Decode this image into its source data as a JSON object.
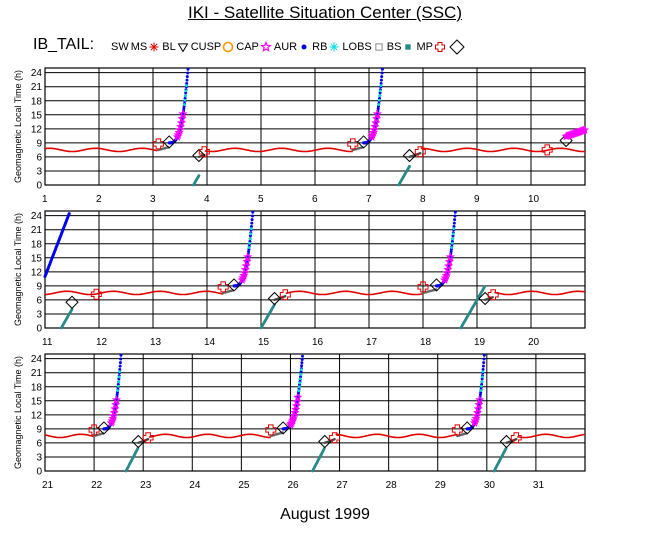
{
  "title": "IKI - Satellite Situation Center (SSC)",
  "spacecraft_label": "IB_TAIL:",
  "legend": [
    {
      "label": "SW",
      "symbol": "none",
      "color": "#ffffff"
    },
    {
      "label": "MS",
      "symbol": "asterisk",
      "color": "#e00000"
    },
    {
      "label": "BL",
      "symbol": "triangle-down",
      "color": "#000000"
    },
    {
      "label": "CUSP",
      "symbol": "circle",
      "color": "#ff9900"
    },
    {
      "label": "CAP",
      "symbol": "star",
      "color": "#ff00ff"
    },
    {
      "label": "AUR",
      "symbol": "dot",
      "color": "#0000ee"
    },
    {
      "label": "RB",
      "symbol": "asterisk",
      "color": "#00dddd"
    },
    {
      "label": "LOBS",
      "symbol": "square",
      "color": "#888888"
    },
    {
      "label": "BS",
      "symbol": "square-filled",
      "color": "#2a8a8a"
    },
    {
      "label": "MP",
      "symbol": "plus",
      "color": "#e00000"
    },
    {
      "label": "",
      "symbol": "diamond",
      "color": "#000000"
    }
  ],
  "xlabel": "August    1999",
  "chart_data": {
    "type": "line",
    "ylabel": "Geomagnetic Local Time (h)",
    "y_ticks": [
      "0",
      "3",
      "6",
      "9",
      "12",
      "15",
      "18",
      "21",
      "24"
    ],
    "ylim": [
      0,
      25
    ],
    "grid": true,
    "panels": [
      {
        "xlim": [
          1,
          11
        ],
        "x_ticks": [
          "1",
          "2",
          "3",
          "4",
          "5",
          "6",
          "7",
          "8",
          "9",
          "10"
        ],
        "passes": [
          {
            "t_bs": 3.1,
            "t_mp": 3.3,
            "t_peri": 3.65,
            "t_out": 3.75,
            "t_mp2": 3.85,
            "t_bs2": 3.95
          },
          {
            "t_bs": 6.7,
            "t_mp": 6.9,
            "t_peri": 7.25,
            "t_out": 7.55,
            "t_mp2": 7.75,
            "t_bs2": 7.95
          }
        ],
        "edge_rise_end": 10.55
      },
      {
        "xlim": [
          11,
          21
        ],
        "x_ticks": [
          "11",
          "12",
          "13",
          "14",
          "15",
          "16",
          "17",
          "18",
          "19",
          "20"
        ],
        "passes": [
          {
            "t_bs": 14.3,
            "t_mp": 14.5,
            "t_peri": 14.85,
            "t_out": 15.0,
            "t_mp2": 15.25,
            "t_bs2": 15.45
          },
          {
            "t_bs": 18.0,
            "t_mp": 18.25,
            "t_peri": 18.6,
            "t_out": 18.7,
            "t_mp2": 19.15,
            "t_bs2": 19.3
          }
        ],
        "edge_fall_start": 11.0
      },
      {
        "xlim": [
          21,
          32
        ],
        "x_ticks": [
          "21",
          "22",
          "23",
          "24",
          "25",
          "26",
          "27",
          "28",
          "29",
          "30",
          "31"
        ],
        "passes": [
          {
            "t_bs": 22.0,
            "t_mp": 22.2,
            "t_peri": 22.55,
            "t_out": 22.65,
            "t_mp2": 22.9,
            "t_bs2": 23.1
          },
          {
            "t_bs": 25.6,
            "t_mp": 25.85,
            "t_peri": 26.25,
            "t_out": 26.45,
            "t_mp2": 26.7,
            "t_bs2": 26.9
          },
          {
            "t_bs": 29.4,
            "t_mp": 29.6,
            "t_peri": 29.95,
            "t_out": 30.15,
            "t_mp2": 30.4,
            "t_bs2": 30.6
          }
        ]
      }
    ],
    "baseline_glt": 7.5
  }
}
